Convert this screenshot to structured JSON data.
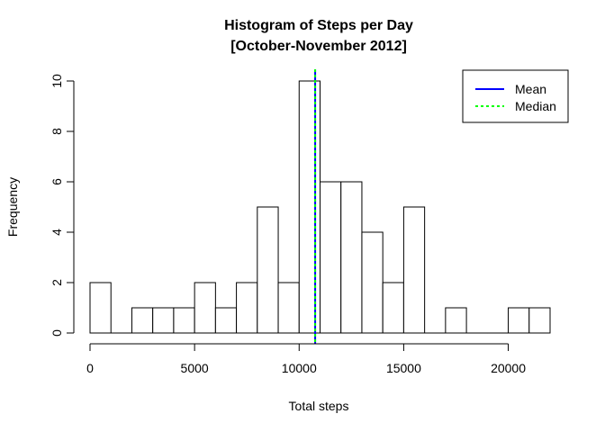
{
  "chart_data": {
    "type": "bar",
    "title": "Histogram of Steps per Day",
    "subtitle": "[October-November 2012]",
    "xlabel": "Total steps",
    "ylabel": "Frequency",
    "bin_width": 1000,
    "bins": [
      {
        "start": 0,
        "end": 1000,
        "count": 2
      },
      {
        "start": 1000,
        "end": 2000,
        "count": 0
      },
      {
        "start": 2000,
        "end": 3000,
        "count": 1
      },
      {
        "start": 3000,
        "end": 4000,
        "count": 1
      },
      {
        "start": 4000,
        "end": 5000,
        "count": 1
      },
      {
        "start": 5000,
        "end": 6000,
        "count": 2
      },
      {
        "start": 6000,
        "end": 7000,
        "count": 1
      },
      {
        "start": 7000,
        "end": 8000,
        "count": 2
      },
      {
        "start": 8000,
        "end": 9000,
        "count": 5
      },
      {
        "start": 9000,
        "end": 10000,
        "count": 2
      },
      {
        "start": 10000,
        "end": 11000,
        "count": 10
      },
      {
        "start": 11000,
        "end": 12000,
        "count": 6
      },
      {
        "start": 12000,
        "end": 13000,
        "count": 6
      },
      {
        "start": 13000,
        "end": 14000,
        "count": 4
      },
      {
        "start": 14000,
        "end": 15000,
        "count": 2
      },
      {
        "start": 15000,
        "end": 16000,
        "count": 5
      },
      {
        "start": 16000,
        "end": 17000,
        "count": 0
      },
      {
        "start": 17000,
        "end": 18000,
        "count": 1
      },
      {
        "start": 18000,
        "end": 19000,
        "count": 0
      },
      {
        "start": 19000,
        "end": 20000,
        "count": 0
      },
      {
        "start": 20000,
        "end": 21000,
        "count": 1
      },
      {
        "start": 21000,
        "end": 22000,
        "count": 1
      }
    ],
    "xlim": [
      0,
      22000
    ],
    "ylim": [
      0,
      10
    ],
    "x_ticks": [
      0,
      5000,
      10000,
      15000,
      20000
    ],
    "y_ticks": [
      0,
      2,
      4,
      6,
      8,
      10
    ],
    "vlines": [
      {
        "name": "Mean",
        "value": 10766,
        "color": "#0000ff",
        "style": "solid"
      },
      {
        "name": "Median",
        "value": 10765,
        "color": "#00ff00",
        "style": "dotted"
      }
    ],
    "legend": {
      "position": "top-right",
      "entries": [
        "Mean",
        "Median"
      ]
    },
    "grid": false
  }
}
